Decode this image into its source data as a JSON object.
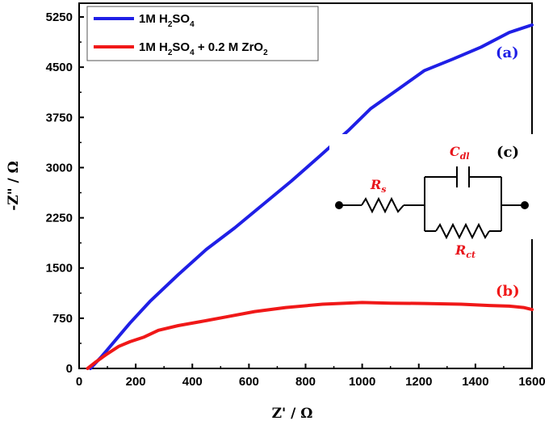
{
  "chart_data": {
    "type": "line",
    "title": "",
    "xlabel": "Z' / Ω",
    "ylabel": "-Z\" / Ω",
    "xlim": [
      0,
      1600
    ],
    "ylim": [
      0,
      5500
    ],
    "x_ticks": [
      0,
      200,
      400,
      600,
      800,
      1000,
      1200,
      1400,
      1600
    ],
    "y_ticks": [
      0,
      750,
      1500,
      2250,
      3000,
      3750,
      4500,
      5250
    ],
    "legend_position": "top-left",
    "series": [
      {
        "name": "1M H2SO4",
        "label_parts": [
          "1M H",
          "2",
          "SO",
          "4"
        ],
        "color": "#1f1fe6",
        "tag": "(a)",
        "x": [
          40,
          80,
          140,
          180,
          250,
          350,
          450,
          550,
          650,
          750,
          850,
          950,
          1030,
          1130,
          1220,
          1320,
          1420,
          1520,
          1600
        ],
        "y": [
          0,
          180,
          480,
          680,
          1000,
          1400,
          1780,
          2100,
          2450,
          2800,
          3170,
          3550,
          3880,
          4180,
          4450,
          4620,
          4800,
          5020,
          5130
        ]
      },
      {
        "name": "1M H2SO4 + 0.2 M ZrO2",
        "label_parts": [
          "1M H",
          "2",
          "SO",
          "4",
          " + 0.2 M ZrO",
          "2"
        ],
        "color": "#f01818",
        "tag": "(b)",
        "x": [
          30,
          60,
          100,
          140,
          180,
          230,
          280,
          350,
          430,
          520,
          620,
          730,
          860,
          1000,
          1100,
          1220,
          1350,
          1450,
          1520,
          1570,
          1600
        ],
        "y": [
          0,
          100,
          220,
          330,
          400,
          470,
          570,
          640,
          700,
          770,
          850,
          910,
          960,
          985,
          975,
          970,
          960,
          940,
          930,
          910,
          880
        ]
      }
    ],
    "inset": {
      "panel_label": "(c)",
      "components": [
        {
          "symbol": "R",
          "sub": "s"
        },
        {
          "symbol": "C",
          "sub": "dl"
        },
        {
          "symbol": "R",
          "sub": "ct"
        }
      ]
    }
  }
}
